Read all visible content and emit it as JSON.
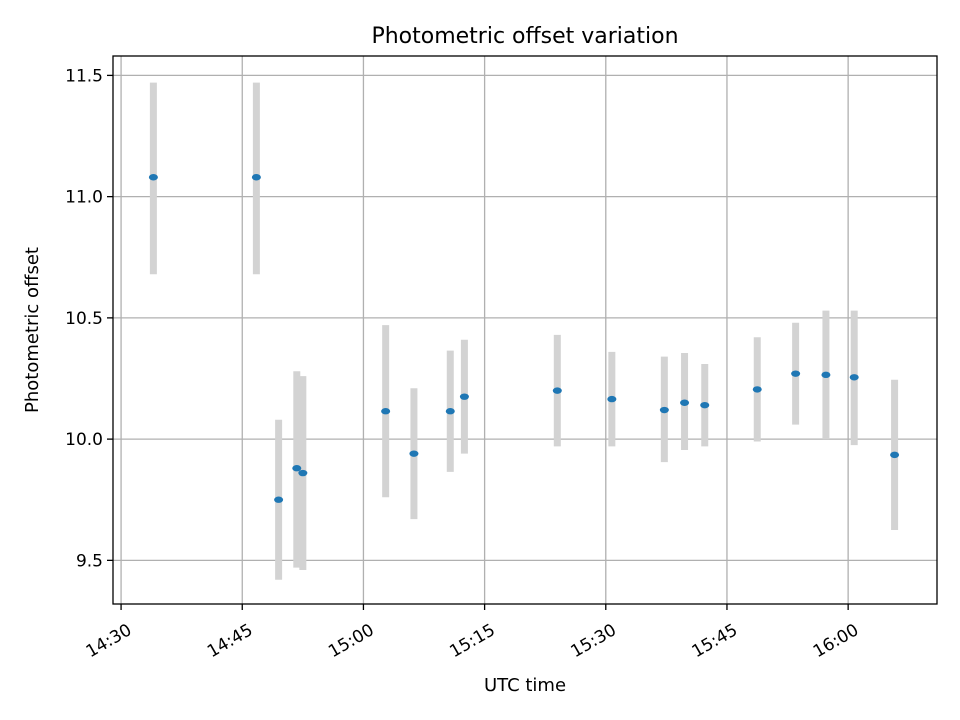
{
  "chart_data": {
    "type": "scatter",
    "title": "Photometric offset variation",
    "xlabel": "UTC time",
    "ylabel": "Photometric offset",
    "x_unit": "UTC time HH:MM",
    "x_ticks": [
      "14:30",
      "14:45",
      "15:00",
      "15:15",
      "15:30",
      "15:45",
      "16:00"
    ],
    "y_ticks": [
      "9.5",
      "10.0",
      "10.5",
      "11.0",
      "11.5"
    ],
    "xlim": [
      "14:29",
      "16:11"
    ],
    "ylim": [
      9.32,
      11.58
    ],
    "grid": true,
    "series": [
      {
        "points": [
          {
            "x": "14:34:00",
            "y": 11.08,
            "ylow": 10.68,
            "yhigh": 11.47
          },
          {
            "x": "14:46:45",
            "y": 11.08,
            "ylow": 10.68,
            "yhigh": 11.47
          },
          {
            "x": "14:49:30",
            "y": 9.75,
            "ylow": 9.42,
            "yhigh": 10.08
          },
          {
            "x": "14:51:45",
            "y": 9.88,
            "ylow": 9.47,
            "yhigh": 10.28
          },
          {
            "x": "14:52:30",
            "y": 9.86,
            "ylow": 9.46,
            "yhigh": 10.26
          },
          {
            "x": "15:02:45",
            "y": 10.115,
            "ylow": 9.76,
            "yhigh": 10.47
          },
          {
            "x": "15:06:15",
            "y": 9.94,
            "ylow": 9.67,
            "yhigh": 10.21
          },
          {
            "x": "15:10:45",
            "y": 10.115,
            "ylow": 9.865,
            "yhigh": 10.365
          },
          {
            "x": "15:12:30",
            "y": 10.175,
            "ylow": 9.94,
            "yhigh": 10.41
          },
          {
            "x": "15:24:00",
            "y": 10.2,
            "ylow": 9.97,
            "yhigh": 10.43
          },
          {
            "x": "15:30:45",
            "y": 10.165,
            "ylow": 9.97,
            "yhigh": 10.36
          },
          {
            "x": "15:37:15",
            "y": 10.12,
            "ylow": 9.905,
            "yhigh": 10.34
          },
          {
            "x": "15:39:45",
            "y": 10.15,
            "ylow": 9.955,
            "yhigh": 10.355
          },
          {
            "x": "15:42:15",
            "y": 10.14,
            "ylow": 9.97,
            "yhigh": 10.31
          },
          {
            "x": "15:48:45",
            "y": 10.205,
            "ylow": 9.99,
            "yhigh": 10.42
          },
          {
            "x": "15:53:30",
            "y": 10.27,
            "ylow": 10.06,
            "yhigh": 10.48
          },
          {
            "x": "15:57:15",
            "y": 10.265,
            "ylow": 10.0,
            "yhigh": 10.53
          },
          {
            "x": "16:00:45",
            "y": 10.255,
            "ylow": 9.975,
            "yhigh": 10.53
          },
          {
            "x": "16:05:45",
            "y": 9.935,
            "ylow": 9.625,
            "yhigh": 10.245
          }
        ]
      }
    ]
  },
  "colors": {
    "point": "#1f77b4",
    "errorbar": "#d3d3d3",
    "grid": "#b0b0b0"
  }
}
